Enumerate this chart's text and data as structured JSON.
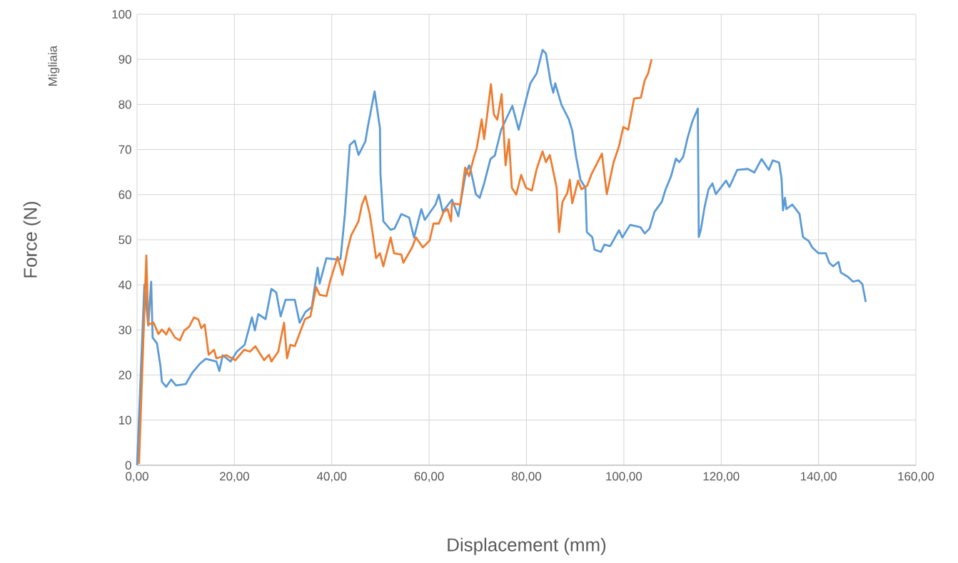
{
  "chart_data": {
    "type": "line",
    "xlabel": "Displacement (mm)",
    "ylabel": "Force (N)",
    "annotations": [
      "Migliaia"
    ],
    "xlim": [
      0,
      160
    ],
    "ylim": [
      0,
      100
    ],
    "xticks": [
      {
        "value": 0,
        "label": "0,00"
      },
      {
        "value": 20,
        "label": "20,00"
      },
      {
        "value": 40,
        "label": "40,00"
      },
      {
        "value": 60,
        "label": "60,00"
      },
      {
        "value": 80,
        "label": "80,00"
      },
      {
        "value": 100,
        "label": "100,00"
      },
      {
        "value": 120,
        "label": "120,00"
      },
      {
        "value": 140,
        "label": "140,00"
      },
      {
        "value": 160,
        "label": "160,00"
      }
    ],
    "yticks": [
      0,
      10,
      20,
      30,
      40,
      50,
      60,
      70,
      80,
      90,
      100
    ],
    "grid": true,
    "legend": false,
    "marker": "none",
    "line_style": "solid",
    "series": [
      {
        "color": "#5b9bd5",
        "x": [
          0,
          1.5,
          1.9,
          2.3,
          2.9,
          3.2,
          4.1,
          4.8,
          5.1,
          6,
          7,
          8,
          10,
          11.4,
          12.9,
          14.1,
          16.3,
          16.9,
          17.6,
          19.2,
          20.5,
          22.1,
          23.6,
          24.2,
          24.9,
          26.4,
          27.6,
          28.6,
          29.5,
          30.5,
          32.4,
          33.4,
          34.6,
          35.9,
          37.1,
          37.5,
          38.9,
          40.3,
          41.8,
          42.7,
          43.7,
          44.7,
          45.5,
          46.9,
          47.4,
          48.8,
          49.9,
          50,
          50.6,
          52.1,
          52.9,
          54.3,
          55.9,
          56.9,
          58.4,
          59.1,
          61.3,
          62,
          62.8,
          64.7,
          66,
          67.4,
          68.2,
          68.6,
          69.6,
          70.4,
          71.3,
          72.6,
          73.5,
          74.8,
          77.1,
          78.4,
          79.9,
          80.8,
          82.1,
          83.3,
          84,
          85,
          85.5,
          85.9,
          87.2,
          88.7,
          89.4,
          90.2,
          91.1,
          92.1,
          92.4,
          93.5,
          94,
          95.3,
          96,
          97.2,
          99,
          99.7,
          101.3,
          103.4,
          104.3,
          105.3,
          106.3,
          107.8,
          108.5,
          109.7,
          110.7,
          111.4,
          112.2,
          113.1,
          114.1,
          115.2,
          115.4,
          115.8,
          116.6,
          117.4,
          118.2,
          118.9,
          121,
          121.7,
          123.3,
          125.5,
          126.8,
          128.3,
          129.8,
          130.6,
          131.9,
          132.4,
          132.7,
          133.1,
          133.4,
          134.6,
          136.1,
          136.8,
          138,
          138.7,
          140,
          141.5,
          142.2,
          143,
          144.1,
          144.6,
          146,
          147.1,
          148.2,
          149,
          149.7
        ],
        "values": [
          0,
          40,
          null,
          31,
          40.7,
          28.3,
          27,
          22,
          18.5,
          17.4,
          19,
          17.7,
          18,
          20.6,
          22.5,
          23.6,
          23,
          20.9,
          24.4,
          23,
          25.2,
          26.7,
          32.8,
          29.9,
          33.5,
          32.4,
          39.1,
          38.3,
          33,
          36.7,
          36.7,
          31.6,
          34,
          35.1,
          43.8,
          40.3,
          45.9,
          45.7,
          45.7,
          55.7,
          71,
          72,
          68.8,
          71.8,
          75,
          82.9,
          74.7,
          64.7,
          54.1,
          52.2,
          52.5,
          55.7,
          54.9,
          50.5,
          56.8,
          54.4,
          57.8,
          60,
          56.2,
          58.9,
          55.2,
          64.1,
          66.5,
          65.2,
          60.1,
          59.3,
          62.5,
          67.9,
          68.7,
          74.4,
          79.7,
          74.4,
          81,
          84.7,
          86.9,
          92.1,
          91.3,
          84.7,
          82.6,
          84.7,
          79.9,
          76.7,
          74.2,
          68.4,
          63.3,
          61.5,
          51.7,
          50.6,
          47.8,
          47.3,
          48.9,
          48.6,
          52.1,
          50.5,
          53.3,
          52.8,
          51.4,
          52.5,
          56.2,
          58.4,
          60.9,
          64.1,
          68,
          67.2,
          68.4,
          72.6,
          76.3,
          79.1,
          50.6,
          52.1,
          57.3,
          61.2,
          62.5,
          60.1,
          63.1,
          61.7,
          65.5,
          65.7,
          64.9,
          67.9,
          65.5,
          67.6,
          67.1,
          63.6,
          56.5,
          59.3,
          56.8,
          57.8,
          55.7,
          50.6,
          49.7,
          48.3,
          47,
          47,
          44.9,
          44.1,
          45.1,
          42.7,
          41.8,
          40.7,
          41,
          40.2,
          36.2
        ]
      },
      {
        "color": "#ed7d31",
        "x": [
          0.4,
          1.9,
          2.3,
          3.4,
          4.4,
          5.1,
          6,
          6.6,
          7.8,
          8.8,
          9.7,
          10.7,
          11.7,
          12.6,
          13.2,
          13.9,
          14.7,
          15.8,
          16.3,
          18.3,
          20.2,
          22,
          23.2,
          24.3,
          26.1,
          27.1,
          27.6,
          29,
          30.2,
          30.8,
          31.5,
          32.4,
          34.5,
          35.6,
          36.8,
          37.5,
          38.9,
          39.7,
          41.2,
          42.2,
          43.3,
          44,
          45.5,
          46.2,
          46.9,
          47.8,
          48.4,
          49.1,
          49.9,
          50.6,
          52.1,
          52.8,
          54.3,
          54.7,
          56.5,
          57.3,
          58.7,
          60.1,
          60.9,
          62,
          63,
          63.8,
          64.5,
          64.7,
          66.4,
          67.4,
          68.2,
          69.1,
          69.8,
          70.8,
          71.3,
          72,
          72.7,
          73.3,
          74,
          74.9,
          75.7,
          76.4,
          77,
          77.9,
          78.9,
          79.9,
          81.1,
          82.1,
          83.3,
          84,
          84.8,
          85.8,
          86.2,
          86.7,
          87.4,
          88.4,
          88.9,
          89.4,
          90.6,
          91.3,
          92.5,
          93.3,
          95.5,
          96.5,
          97.9,
          99,
          99.9,
          100.9,
          102.1,
          103.5,
          104.3,
          105,
          105.7
        ],
        "values": [
          0.3,
          46.5,
          31.2,
          31.6,
          29.1,
          30.1,
          29,
          30.4,
          28.3,
          27.7,
          29.9,
          30.7,
          32.8,
          32.3,
          30.4,
          31.2,
          24.5,
          25.6,
          23.7,
          24.4,
          23.3,
          25.6,
          25.2,
          26.4,
          23.3,
          24.5,
          23,
          25.2,
          31.6,
          23.7,
          26.7,
          26.4,
          32.4,
          33,
          39.5,
          37.8,
          37.5,
          41,
          46.2,
          42.2,
          48.1,
          51,
          54.1,
          57.8,
          59.7,
          55.7,
          51.4,
          45.9,
          47,
          44.1,
          50.5,
          47,
          46.7,
          44.9,
          48.3,
          50.5,
          48.3,
          49.8,
          53.6,
          53.6,
          56.2,
          56.8,
          54.1,
          58.1,
          57.8,
          66,
          64.1,
          67.9,
          70.4,
          76.7,
          72.3,
          78.3,
          84.5,
          77.8,
          76.6,
          82.3,
          66.5,
          72.3,
          61.5,
          60,
          64.4,
          61.5,
          60.9,
          65.7,
          69.6,
          67.2,
          68.8,
          63.6,
          61.5,
          51.7,
          58.4,
          60.4,
          63.3,
          58.1,
          63.1,
          61.2,
          62,
          64.4,
          69.1,
          60.1,
          67.2,
          70.7,
          75,
          74.4,
          81.3,
          81.5,
          85.4,
          86.9,
          90
        ]
      }
    ]
  }
}
